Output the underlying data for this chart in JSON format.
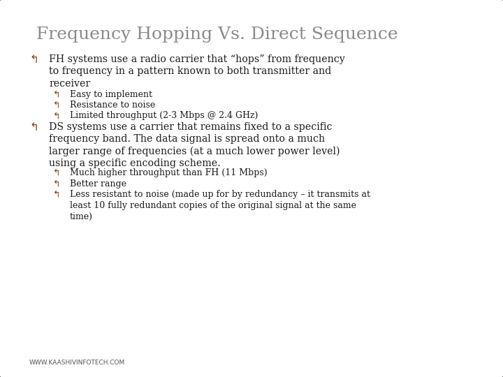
{
  "title": "Frequency Hopping Vs. Direct Sequence",
  "title_color": "#8a8a8a",
  "title_fontsize": 18,
  "background_color": "#ffffff",
  "border_color": "#555555",
  "text_color": "#1a1a1a",
  "bullet_color": "#8B3a0f",
  "body_fontsize": 10.2,
  "sub_fontsize": 9.0,
  "watermark": "WWW.KAASHIVINFOTECH.COM",
  "items": [
    {
      "level": 1,
      "text": "FH systems use a radio carrier that “hops” from frequency\nto frequency in a pattern known to both transmitter and\nreceiver"
    },
    {
      "level": 2,
      "text": "Easy to implement"
    },
    {
      "level": 2,
      "text": "Resistance to noise"
    },
    {
      "level": 2,
      "text": "Limited throughput (2-3 Mbps @ 2.4 GHz)"
    },
    {
      "level": 1,
      "text": "DS systems use a carrier that remains fixed to a specific\nfrequency band. The data signal is spread onto a much\nlarger range of frequencies (at a much lower power level)\nusing a specific encoding scheme."
    },
    {
      "level": 2,
      "text": "Much higher throughput than FH (11 Mbps)"
    },
    {
      "level": 2,
      "text": "Better range"
    },
    {
      "level": 2,
      "text": "Less resistant to noise (made up for by redundancy – it transmits at\nleast 10 fully redundant copies of the original signal at the same\ntime)"
    }
  ]
}
